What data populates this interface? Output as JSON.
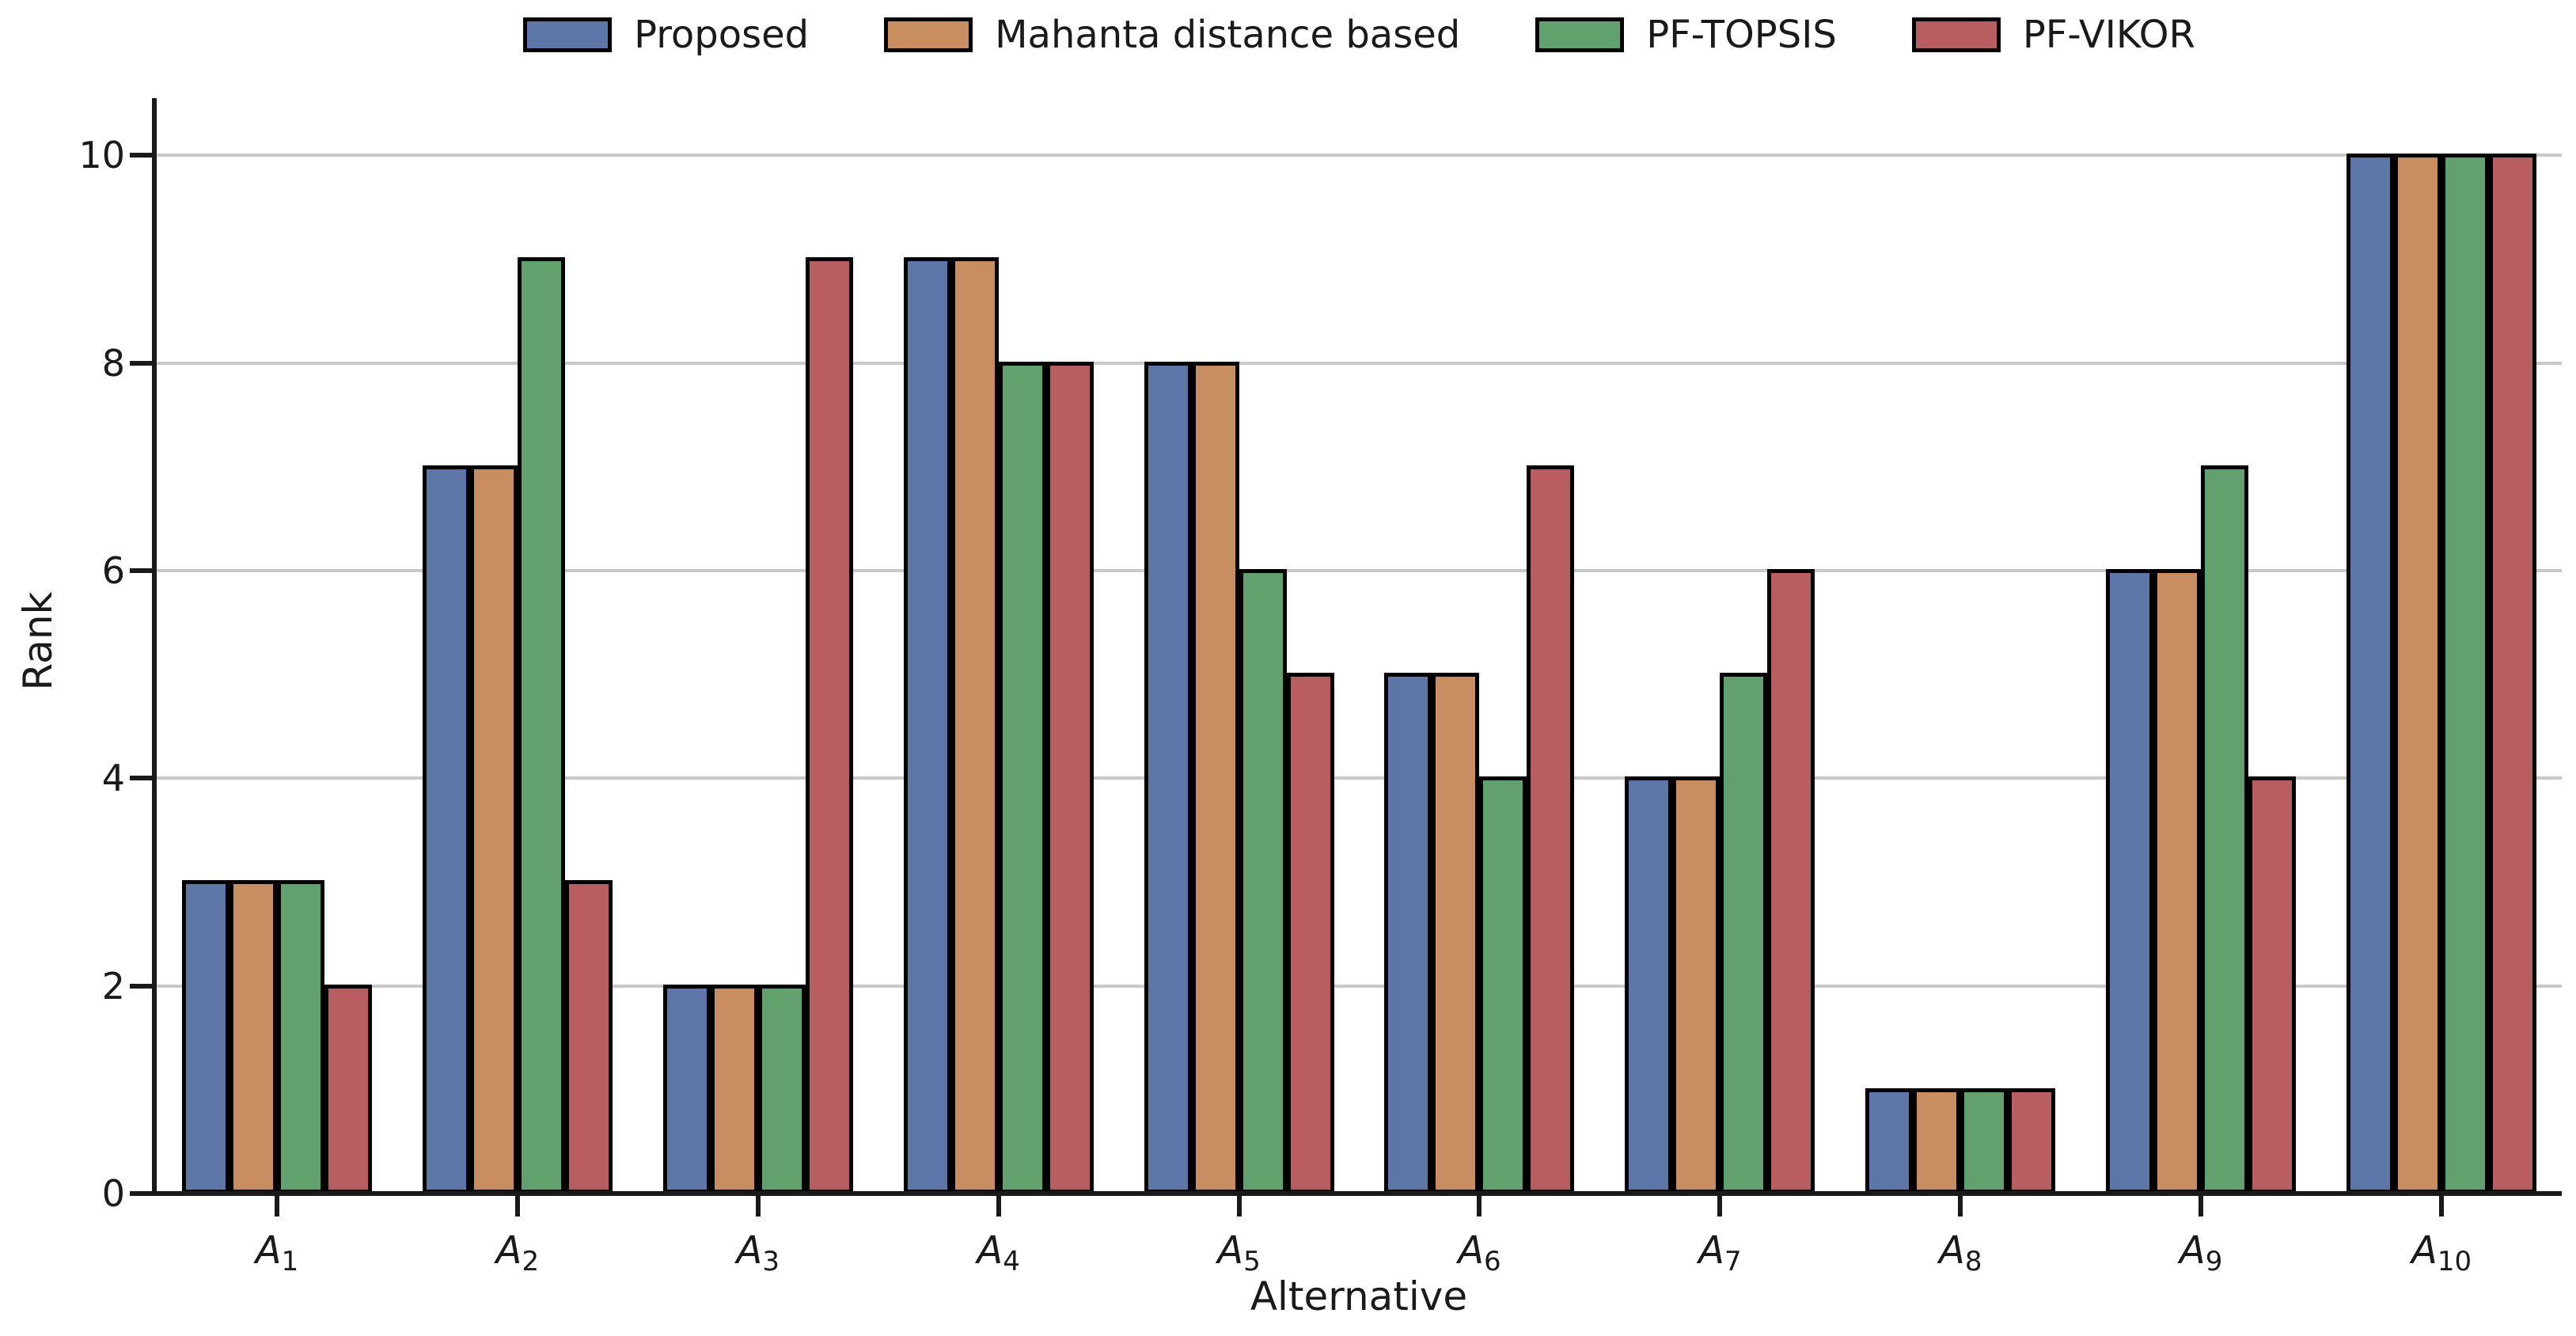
{
  "figure": {
    "background": "#ffffff"
  },
  "legend": {
    "position": "top center",
    "swatch_border_color": "#000000",
    "items": [
      {
        "label": "Proposed",
        "color": "#5B76A7"
      },
      {
        "label": "Mahanta distance based",
        "color": "#C98E60"
      },
      {
        "label": "PF-TOPSIS",
        "color": "#61A16E"
      },
      {
        "label": "PF-VIKOR",
        "color": "#B85E60"
      }
    ]
  },
  "chart_data": {
    "type": "bar",
    "title": "",
    "xlabel": "Alternative",
    "ylabel": "Rank",
    "categories": [
      {
        "text": "A",
        "sub": "1"
      },
      {
        "text": "A",
        "sub": "2"
      },
      {
        "text": "A",
        "sub": "3"
      },
      {
        "text": "A",
        "sub": "4"
      },
      {
        "text": "A",
        "sub": "5"
      },
      {
        "text": "A",
        "sub": "6"
      },
      {
        "text": "A",
        "sub": "7"
      },
      {
        "text": "A",
        "sub": "8"
      },
      {
        "text": "A",
        "sub": "9"
      },
      {
        "text": "A",
        "sub": "10"
      }
    ],
    "series": [
      {
        "name": "Proposed",
        "color": "#5B76A7",
        "values": [
          3,
          7,
          2,
          9,
          8,
          5,
          4,
          1,
          6,
          10
        ]
      },
      {
        "name": "Mahanta distance based",
        "color": "#C98E60",
        "values": [
          3,
          7,
          2,
          9,
          8,
          5,
          4,
          1,
          6,
          10
        ]
      },
      {
        "name": "PF-TOPSIS",
        "color": "#61A16E",
        "values": [
          3,
          9,
          2,
          8,
          6,
          4,
          5,
          1,
          7,
          10
        ]
      },
      {
        "name": "PF-VIKOR",
        "color": "#B85E60",
        "values": [
          2,
          3,
          9,
          8,
          5,
          7,
          6,
          1,
          4,
          10
        ]
      }
    ],
    "yticks": [
      0,
      2,
      4,
      6,
      8,
      10
    ],
    "yticklabels": [
      "0",
      "2",
      "4",
      "6",
      "8",
      "10"
    ],
    "ylim": [
      0,
      10.55
    ],
    "grid": true,
    "grid_axis": "y",
    "grid_color": "#C9C9C9",
    "bar_edge_color": "#000000",
    "axis_color": "#1A1A1A",
    "legend_position": "upper center, horizontal"
  }
}
